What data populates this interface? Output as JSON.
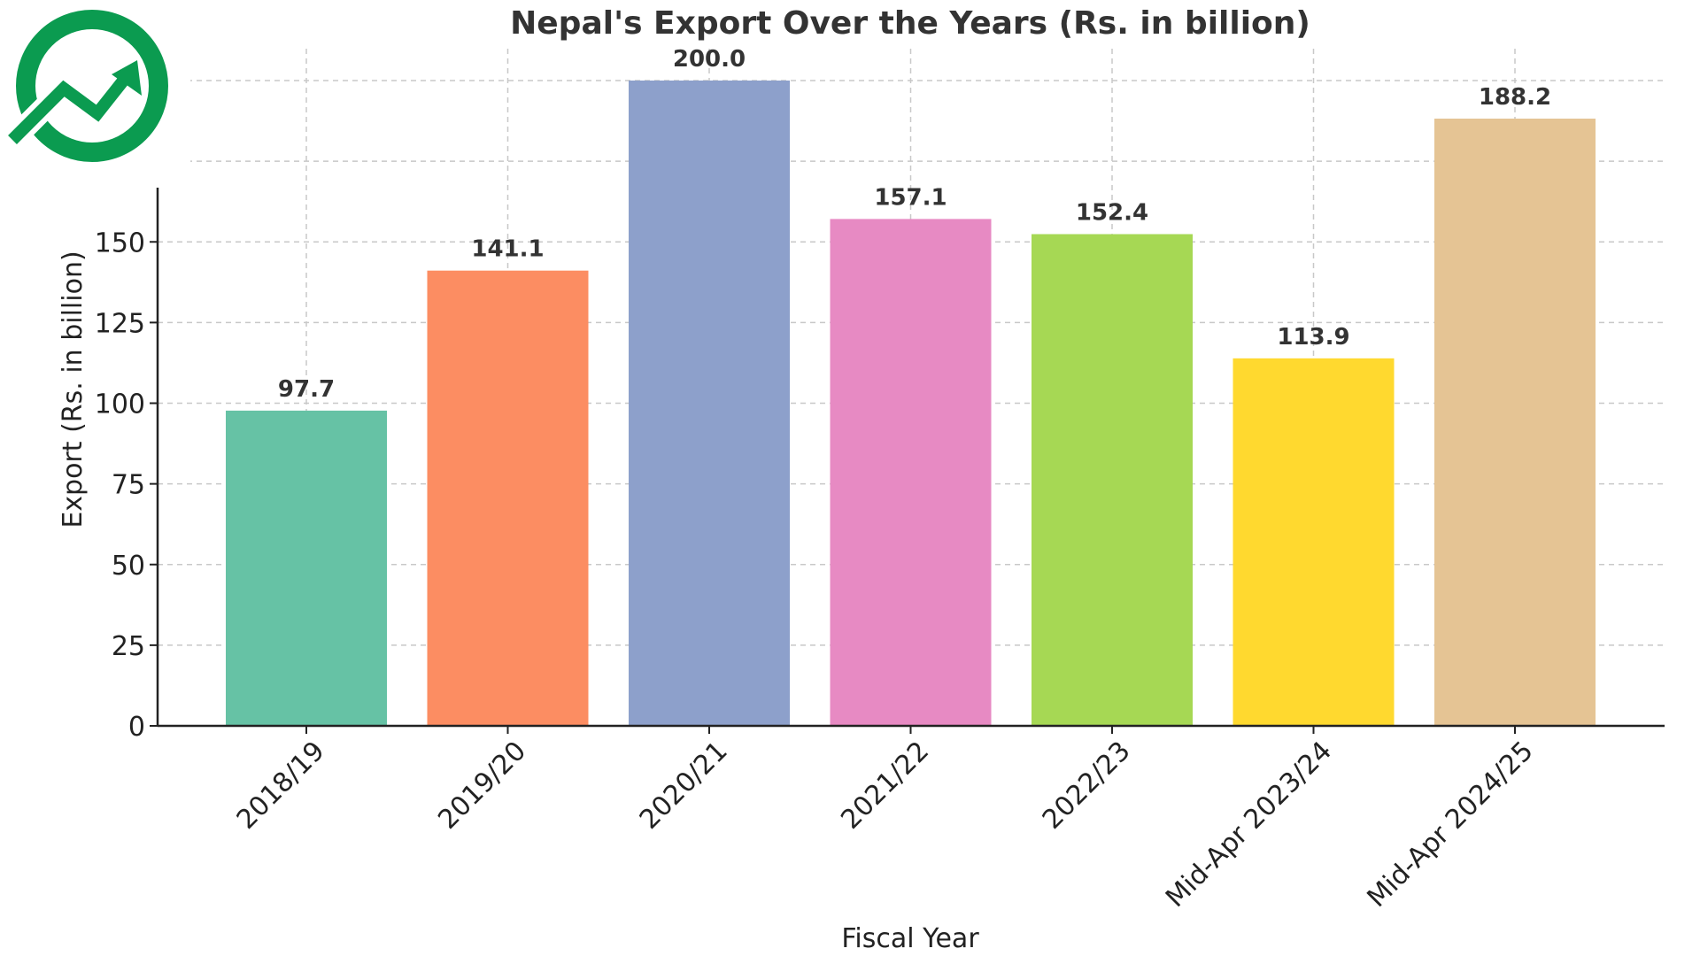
{
  "chart_data": {
    "type": "bar",
    "title": "Nepal's Export Over the Years (Rs. in billion)",
    "xlabel": "Fiscal Year",
    "ylabel": "Export (Rs. in billion)",
    "categories": [
      "2018/19",
      "2019/20",
      "2020/21",
      "2021/22",
      "2022/23",
      "Mid-Apr 2023/24",
      "Mid-Apr 2024/25"
    ],
    "values": [
      97.7,
      141.1,
      200.0,
      157.1,
      152.4,
      113.9,
      188.2
    ],
    "data_labels": [
      "97.7",
      "141.1",
      "200.0",
      "157.1",
      "152.4",
      "113.9",
      "188.2"
    ],
    "colors": [
      "#66c2a5",
      "#fc8d62",
      "#8da0cb",
      "#e78ac3",
      "#a6d854",
      "#ffd92f",
      "#e5c494"
    ],
    "yticks": [
      0,
      25,
      50,
      75,
      100,
      125,
      150
    ],
    "ylim": [
      0,
      210
    ],
    "grid": true,
    "x_tick_rotation_deg": 45
  },
  "logo": {
    "name": "growth-arrow-logo-icon",
    "color": "#0b9b50"
  }
}
